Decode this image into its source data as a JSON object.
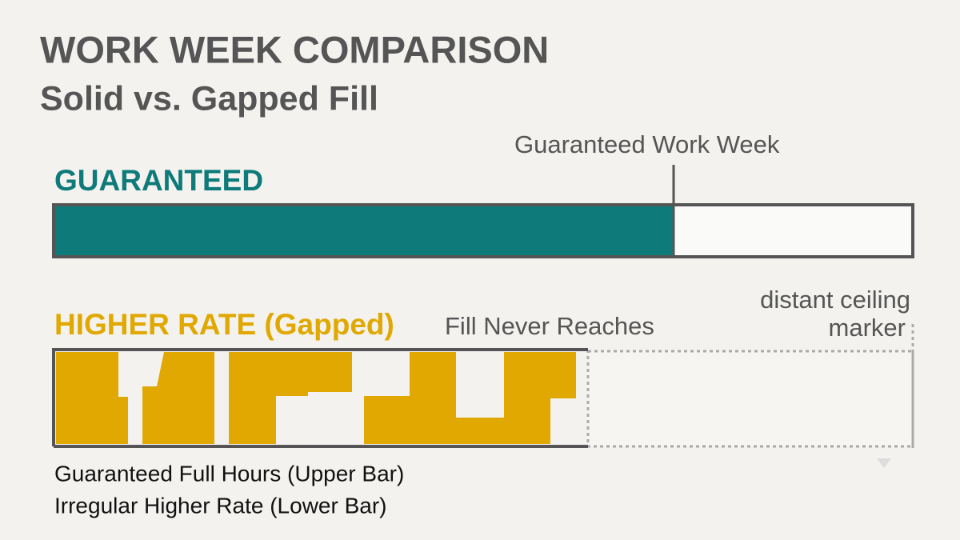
{
  "header": {
    "title": "WORK WEEK COMPARISON",
    "subtitle": "Solid vs. Gapped Fill"
  },
  "upper_bar": {
    "label": "GUARANTEED",
    "marker_label": "Guaranteed Work Week"
  },
  "lower_bar": {
    "label": "HIGHER RATE (Gapped)",
    "annotation": "Fill Never Reaches",
    "ceiling_label": [
      "distant ceiling",
      "marker"
    ]
  },
  "legend": [
    "Guaranteed Full Hours (Upper Bar)",
    "Irregular Higher Rate (Lower Bar)"
  ]
}
